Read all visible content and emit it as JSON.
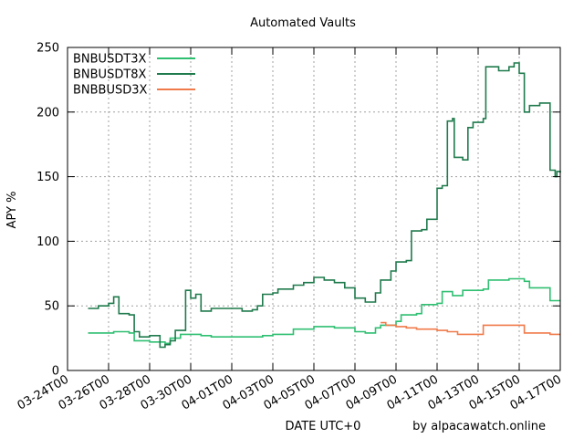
{
  "chart_data": {
    "type": "line",
    "title": "Automated Vaults",
    "xlabel": "DATE UTC+0",
    "ylabel": "APY %",
    "credit": "by alpacawatch.online",
    "ylim": [
      0,
      250
    ],
    "xlim": [
      "03-24T00",
      "04-17T00"
    ],
    "grid": true,
    "legend_position": "top-left",
    "y_ticks": [
      0,
      50,
      100,
      150,
      200,
      250
    ],
    "x_ticks": [
      "03-24T00",
      "03-26T00",
      "03-28T00",
      "03-30T00",
      "04-01T00",
      "04-03T00",
      "04-05T00",
      "04-07T00",
      "04-09T00",
      "04-11T00",
      "04-13T00",
      "04-15T00",
      "04-17T00"
    ],
    "series": [
      {
        "name": "BNBUSDT3X",
        "color": "#2fbf71",
        "points": [
          [
            "03-25T00",
            29
          ],
          [
            "03-26T06",
            30
          ],
          [
            "03-27T00",
            29
          ],
          [
            "03-27T06",
            23
          ],
          [
            "03-28T00",
            22
          ],
          [
            "03-28T18",
            21
          ],
          [
            "03-29T00",
            25
          ],
          [
            "03-29T12",
            28
          ],
          [
            "03-30T12",
            27
          ],
          [
            "03-31T00",
            26
          ],
          [
            "04-01T00",
            26
          ],
          [
            "04-02T00",
            26
          ],
          [
            "04-02T12",
            27
          ],
          [
            "04-03T00",
            28
          ],
          [
            "04-04T00",
            32
          ],
          [
            "04-05T00",
            34
          ],
          [
            "04-06T00",
            33
          ],
          [
            "04-07T00",
            30
          ],
          [
            "04-07T12",
            29
          ],
          [
            "04-08T00",
            33
          ],
          [
            "04-08T06",
            35
          ],
          [
            "04-09T00",
            38
          ],
          [
            "04-09T06",
            43
          ],
          [
            "04-10T00",
            44
          ],
          [
            "04-10T06",
            51
          ],
          [
            "04-11T00",
            52
          ],
          [
            "04-11T06",
            61
          ],
          [
            "04-11T18",
            58
          ],
          [
            "04-12T06",
            62
          ],
          [
            "04-13T06",
            63
          ],
          [
            "04-13T12",
            70
          ],
          [
            "04-14T12",
            71
          ],
          [
            "04-15T06",
            69
          ],
          [
            "04-15T12",
            64
          ],
          [
            "04-16T06",
            64
          ],
          [
            "04-16T12",
            54
          ],
          [
            "04-17T00",
            54
          ]
        ]
      },
      {
        "name": "BNBUSDT8X",
        "color": "#1f7a4c",
        "points": [
          [
            "03-25T00",
            48
          ],
          [
            "03-25T12",
            50
          ],
          [
            "03-26T00",
            52
          ],
          [
            "03-26T06",
            57
          ],
          [
            "03-26T12",
            44
          ],
          [
            "03-27T00",
            43
          ],
          [
            "03-27T06",
            30
          ],
          [
            "03-27T12",
            26
          ],
          [
            "03-28T00",
            27
          ],
          [
            "03-28T12",
            18
          ],
          [
            "03-28T18",
            20
          ],
          [
            "03-29T00",
            23
          ],
          [
            "03-29T06",
            31
          ],
          [
            "03-29T12",
            31
          ],
          [
            "03-29T18",
            62
          ],
          [
            "03-30T00",
            56
          ],
          [
            "03-30T06",
            59
          ],
          [
            "03-30T12",
            46
          ],
          [
            "03-30T18",
            46
          ],
          [
            "03-31T00",
            48
          ],
          [
            "04-01T00",
            48
          ],
          [
            "04-01T12",
            46
          ],
          [
            "04-02T00",
            47
          ],
          [
            "04-02T06",
            50
          ],
          [
            "04-02T12",
            59
          ],
          [
            "04-03T00",
            60
          ],
          [
            "04-03T06",
            63
          ],
          [
            "04-04T00",
            66
          ],
          [
            "04-04T12",
            68
          ],
          [
            "04-05T00",
            72
          ],
          [
            "04-05T12",
            70
          ],
          [
            "04-06T00",
            68
          ],
          [
            "04-06T12",
            64
          ],
          [
            "04-07T00",
            56
          ],
          [
            "04-07T12",
            53
          ],
          [
            "04-08T00",
            60
          ],
          [
            "04-08T06",
            70
          ],
          [
            "04-08T18",
            77
          ],
          [
            "04-09T00",
            84
          ],
          [
            "04-09T12",
            85
          ],
          [
            "04-09T18",
            108
          ],
          [
            "04-10T06",
            109
          ],
          [
            "04-10T12",
            117
          ],
          [
            "04-11T00",
            141
          ],
          [
            "04-11T06",
            143
          ],
          [
            "04-11T12",
            193
          ],
          [
            "04-11T18",
            195
          ],
          [
            "04-11T20",
            165
          ],
          [
            "04-12T06",
            163
          ],
          [
            "04-12T12",
            188
          ],
          [
            "04-12T18",
            192
          ],
          [
            "04-13T06",
            195
          ],
          [
            "04-13T09",
            235
          ],
          [
            "04-14T00",
            232
          ],
          [
            "04-14T12",
            235
          ],
          [
            "04-14T18",
            238
          ],
          [
            "04-15T00",
            230
          ],
          [
            "04-15T06",
            200
          ],
          [
            "04-15T12",
            205
          ],
          [
            "04-16T00",
            207
          ],
          [
            "04-16T06",
            207
          ],
          [
            "04-16T12",
            155
          ],
          [
            "04-16T18",
            150
          ],
          [
            "04-16T20",
            154
          ],
          [
            "04-17T00",
            153
          ]
        ]
      },
      {
        "name": "BNBBUSD3X",
        "color": "#f07a4a",
        "points": [
          [
            "04-08T06",
            37
          ],
          [
            "04-08T12",
            35
          ],
          [
            "04-09T00",
            34
          ],
          [
            "04-09T06",
            34
          ],
          [
            "04-09T12",
            33
          ],
          [
            "04-10T00",
            32
          ],
          [
            "04-11T00",
            31
          ],
          [
            "04-11T12",
            30
          ],
          [
            "04-12T00",
            28
          ],
          [
            "04-13T00",
            28
          ],
          [
            "04-13T06",
            35
          ],
          [
            "04-15T00",
            35
          ],
          [
            "04-15T06",
            29
          ],
          [
            "04-16T06",
            29
          ],
          [
            "04-16T12",
            28
          ],
          [
            "04-17T00",
            28
          ]
        ]
      }
    ]
  }
}
